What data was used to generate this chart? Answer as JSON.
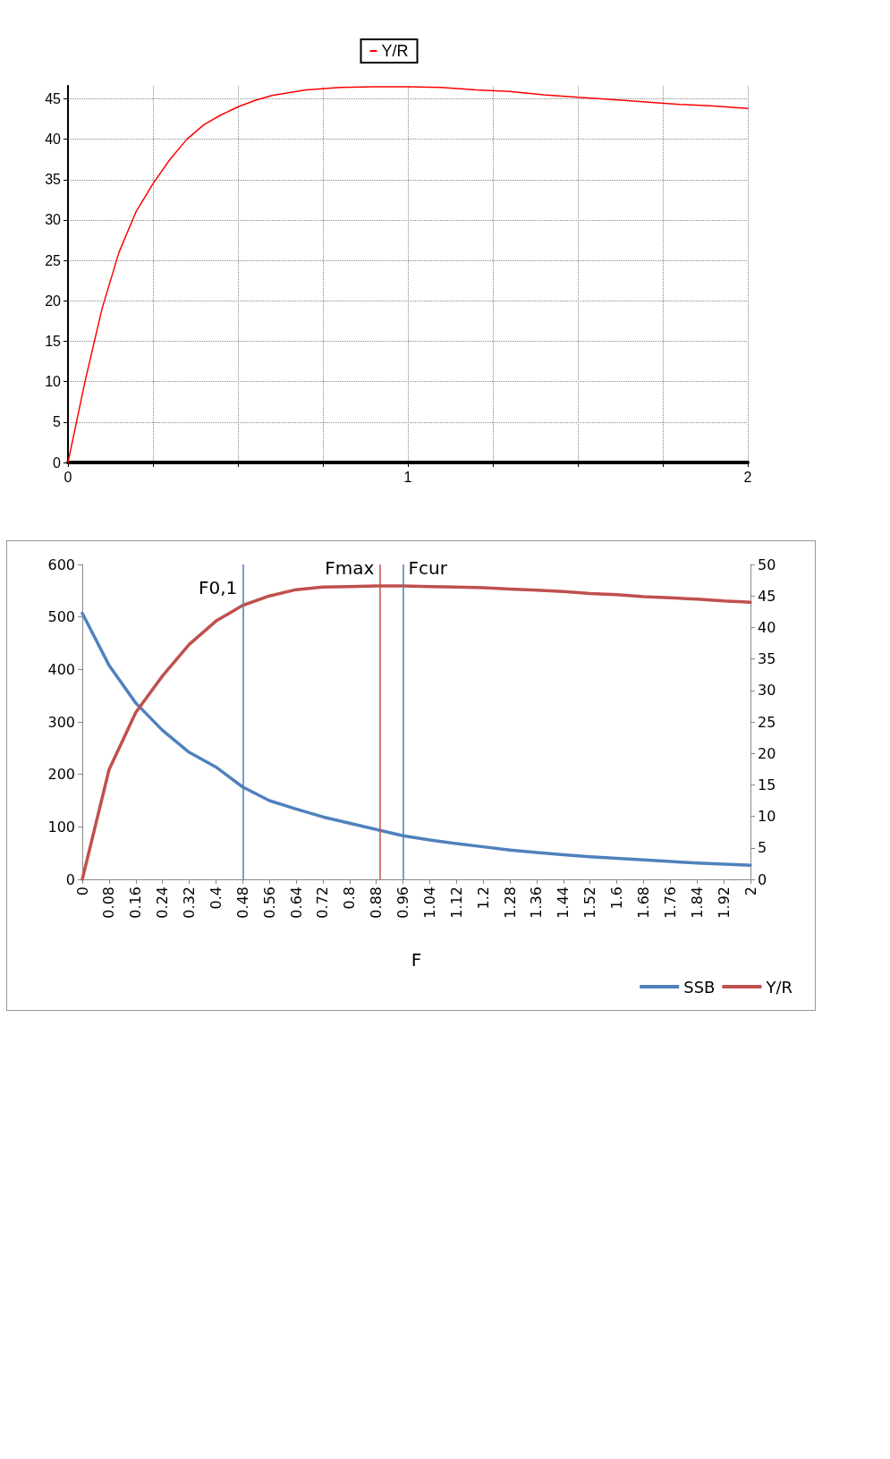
{
  "chart_data": [
    {
      "type": "line",
      "x": [
        0,
        0.05,
        0.1,
        0.15,
        0.2,
        0.25,
        0.3,
        0.35,
        0.4,
        0.45,
        0.5,
        0.55,
        0.6,
        0.7,
        0.8,
        0.9,
        1.0,
        1.1,
        1.2,
        1.3,
        1.4,
        1.5,
        1.6,
        1.7,
        1.8,
        1.9,
        2.0
      ],
      "series": [
        {
          "name": "Y/R",
          "color": "#ff0000",
          "values": [
            0,
            10,
            19,
            26,
            31,
            34.5,
            37.5,
            40,
            41.8,
            43,
            44,
            44.8,
            45.4,
            46.1,
            46.4,
            46.5,
            46.5,
            46.4,
            46.1,
            45.9,
            45.5,
            45.2,
            44.9,
            44.6,
            44.3,
            44.1,
            43.8
          ]
        }
      ],
      "xlim": [
        0,
        2
      ],
      "xticks": [
        0,
        {
          "value": 0.25,
          "label": null
        },
        {
          "value": 0.5,
          "label": null
        },
        {
          "value": 0.75,
          "label": null
        },
        1,
        {
          "value": 1.25,
          "label": null
        },
        {
          "value": 1.5,
          "label": null
        },
        {
          "value": 1.75,
          "label": null
        },
        2
      ],
      "ylim": [
        0,
        46.6
      ],
      "yticks": [
        0,
        5,
        10,
        15,
        20,
        25,
        30,
        35,
        40,
        45
      ],
      "grid": true,
      "legend": "top",
      "marker": "none",
      "line_style": "solid"
    },
    {
      "type": "line",
      "xlabel": "F",
      "x": [
        0,
        0.08,
        0.16,
        0.24,
        0.32,
        0.4,
        0.48,
        0.56,
        0.64,
        0.72,
        0.8,
        0.88,
        0.96,
        1.04,
        1.12,
        1.2,
        1.28,
        1.36,
        1.44,
        1.52,
        1.6,
        1.68,
        1.76,
        1.84,
        1.92,
        2
      ],
      "series": [
        {
          "name": "SSB",
          "color": "#4f81bd",
          "values": [
            507,
            408,
            336,
            284,
            242,
            214,
            176,
            150,
            134,
            119,
            107,
            95,
            83,
            75,
            68,
            62,
            56,
            51,
            47,
            43,
            40,
            37,
            34,
            31,
            29,
            27
          ]
        },
        {
          "name": "Y/R",
          "color": "#c0504d",
          "axis": "y2",
          "values": [
            0,
            17.4,
            26.5,
            32.3,
            37.3,
            41,
            43.5,
            45,
            46,
            46.4,
            46.5,
            46.6,
            46.6,
            46.5,
            46.4,
            46.3,
            46.1,
            45.9,
            45.7,
            45.4,
            45.2,
            44.9,
            44.7,
            44.5,
            44.2,
            44
          ]
        }
      ],
      "xlim": [
        0,
        2
      ],
      "xticks": [
        0,
        0.08,
        0.16,
        0.24,
        0.32,
        0.4,
        0.48,
        0.56,
        0.64,
        0.72,
        0.8,
        0.88,
        0.96,
        1.04,
        1.12,
        1.2,
        1.28,
        1.36,
        1.44,
        1.52,
        1.6,
        1.68,
        1.76,
        1.84,
        1.92,
        2
      ],
      "ylim": [
        0,
        600
      ],
      "yticks": [
        0,
        100,
        200,
        300,
        400,
        500,
        600
      ],
      "y2lim": [
        0,
        50
      ],
      "y2ticks": [
        0,
        5,
        10,
        15,
        20,
        25,
        30,
        35,
        40,
        45,
        50
      ],
      "ref_lines": [
        {
          "axis": "x",
          "value": 0.48,
          "label": "F0,1",
          "color": "#4a7ebb"
        },
        {
          "axis": "x",
          "value": 0.89,
          "label": "Fmax",
          "color": "#c0504d"
        },
        {
          "axis": "x",
          "value": 0.96,
          "label": "Fcur",
          "color": "#4a7ebb"
        }
      ],
      "grid": false,
      "legend": "bottom right",
      "marker": "none",
      "line_style": "solid"
    }
  ]
}
